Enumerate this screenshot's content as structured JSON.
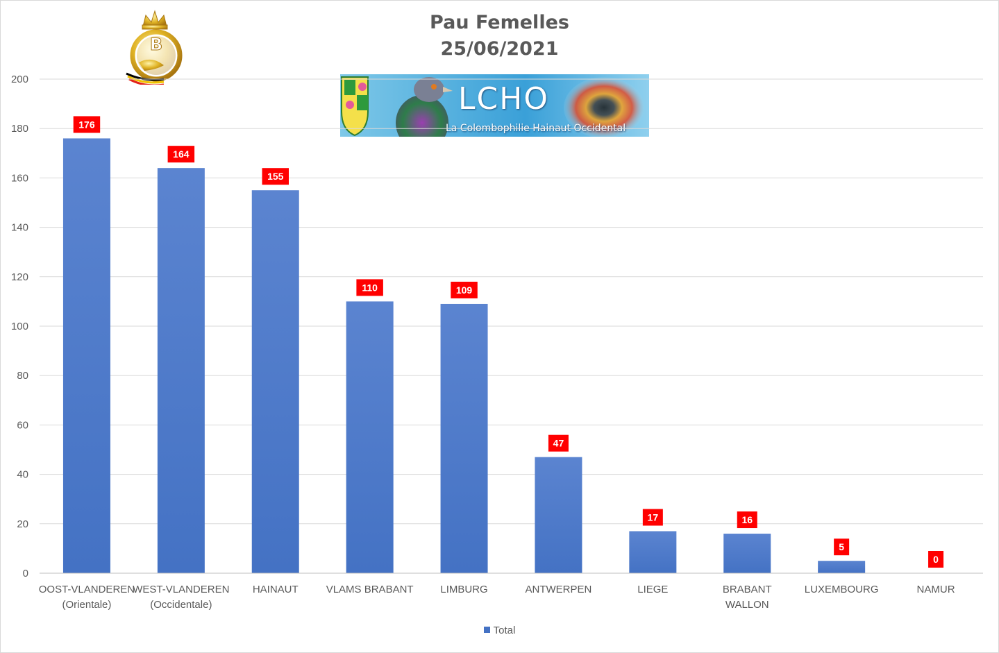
{
  "chart_data": {
    "type": "bar",
    "title": "Pau Femelles",
    "subtitle": "25/06/2021",
    "categories": [
      [
        "OOST-VLANDEREN",
        "(Orientale)"
      ],
      [
        "WEST-VLANDEREN",
        "(Occidentale)"
      ],
      [
        "HAINAUT"
      ],
      [
        "VLAMS BRABANT"
      ],
      [
        "LIMBURG"
      ],
      [
        "ANTWERPEN"
      ],
      [
        "LIEGE"
      ],
      [
        "BRABANT",
        "WALLON"
      ],
      [
        "LUXEMBOURG"
      ],
      [
        "NAMUR"
      ]
    ],
    "series": [
      {
        "name": "Total",
        "values": [
          176,
          164,
          155,
          110,
          109,
          47,
          17,
          16,
          5,
          0
        ]
      }
    ],
    "ylim": [
      0,
      200
    ],
    "yticks": [
      0,
      20,
      40,
      60,
      80,
      100,
      120,
      140,
      160,
      180,
      200
    ],
    "grid": true,
    "legend": "bottom",
    "colors": {
      "bar": "#4472c4",
      "bar_top": "#5b84d0",
      "label_bg": "#ff0000",
      "grid": "#d9d9d9"
    }
  },
  "banner": {
    "name": "LCHO",
    "tagline": "La Colombophilie Hainaut Occidental"
  },
  "logo": {
    "letter": "B"
  }
}
